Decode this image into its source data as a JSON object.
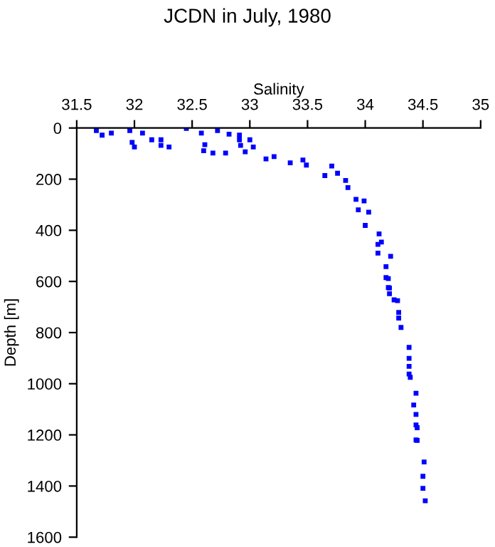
{
  "chart_data": {
    "type": "scatter",
    "title": "JCDN in July, 1980",
    "xlabel": "Salinity",
    "ylabel": "Depth [m]",
    "x": [
      31.67,
      31.72,
      31.8,
      31.96,
      31.98,
      32.0,
      32.07,
      32.15,
      32.23,
      32.23,
      32.3,
      32.45,
      32.58,
      32.61,
      32.6,
      32.68,
      32.79,
      32.72,
      32.82,
      32.91,
      32.91,
      32.92,
      33.0,
      33.03,
      32.96,
      33.14,
      33.21,
      33.35,
      33.46,
      33.49,
      33.65,
      33.71,
      33.76,
      33.83,
      33.85,
      33.92,
      33.99,
      33.94,
      34.03,
      34.0,
      34.12,
      34.11,
      34.14,
      34.11,
      34.22,
      34.18,
      34.18,
      34.2,
      34.2,
      34.21,
      34.21,
      34.25,
      34.28,
      34.29,
      34.29,
      34.31,
      34.38,
      34.38,
      34.38,
      34.38,
      34.39,
      34.44,
      34.42,
      34.44,
      34.44,
      34.45,
      34.44,
      34.45,
      34.51,
      34.5,
      34.5,
      34.52
    ],
    "values": [
      10,
      28,
      20,
      10,
      56,
      74,
      20,
      46,
      46,
      68,
      74,
      2,
      20,
      65,
      89,
      98,
      98,
      10,
      24,
      28,
      46,
      68,
      46,
      74,
      93,
      121,
      112,
      136,
      125,
      145,
      186,
      149,
      177,
      205,
      233,
      279,
      285,
      320,
      329,
      381,
      414,
      455,
      446,
      489,
      502,
      542,
      585,
      589,
      624,
      626,
      648,
      672,
      675,
      721,
      743,
      780,
      858,
      901,
      932,
      962,
      975,
      1037,
      1083,
      1120,
      1161,
      1172,
      1220,
      1222,
      1306,
      1362,
      1409,
      1458
    ],
    "color": "#0000ff",
    "marker": "square",
    "xlim": [
      31.5,
      35
    ],
    "xticks": [
      31.5,
      32,
      32.5,
      33,
      33.5,
      34,
      34.5,
      35
    ],
    "ylim": [
      1600,
      0
    ],
    "yticks": [
      0,
      200,
      400,
      600,
      800,
      1000,
      1200,
      1400,
      1600
    ],
    "grid": false,
    "legend": false
  }
}
